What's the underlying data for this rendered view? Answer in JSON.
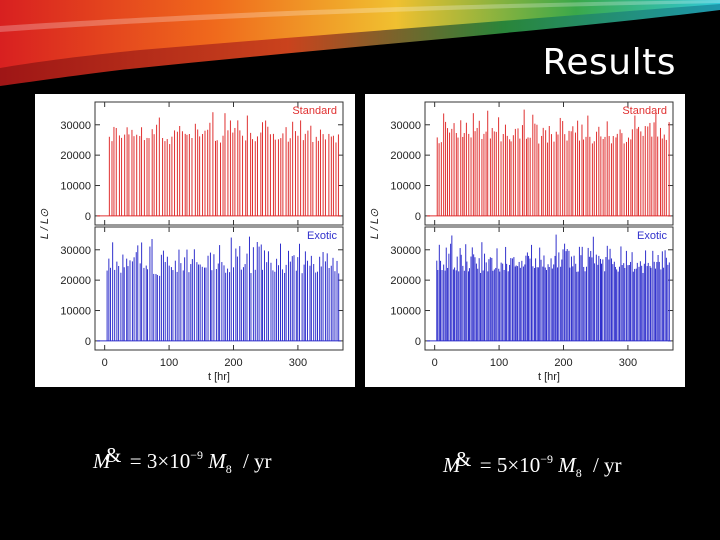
{
  "slide": {
    "title": "Results",
    "formulas": [
      {
        "lhs": "M",
        "dot": "&",
        "eq": "=",
        "coeff": "3",
        "times": "×",
        "base": "10",
        "exp": "−9",
        "mass": "M",
        "mass_sub": "8",
        "unit": "/ yr"
      },
      {
        "lhs": "M",
        "dot": "&",
        "eq": "=",
        "coeff": "5",
        "times": "×",
        "base": "10",
        "exp": "−9",
        "mass": "M",
        "mass_sub": "8",
        "unit": "/ yr"
      }
    ]
  },
  "colors": {
    "standard": "#e03030",
    "exotic": "#3030cc",
    "banner_green": "#3aa84a",
    "banner_cyan": "#30c8d8",
    "banner_red": "#d82020",
    "banner_orange": "#f08020"
  },
  "chart_data": [
    {
      "type": "line",
      "title": "",
      "xlabel": "t [hr]",
      "ylabel": "L / L⊙",
      "xlim": [
        -15,
        370
      ],
      "ylim": [
        -3000,
        37500
      ],
      "xticks": [
        "0",
        "100",
        "200",
        "300"
      ],
      "yticks": [
        "0",
        "10000",
        "20000",
        "30000"
      ],
      "series": [
        {
          "name": "Standard",
          "color": "#e03030",
          "spike_count": 92,
          "peak_range": [
            17000,
            35000
          ],
          "x_range": [
            5,
            365
          ]
        },
        {
          "name": "Exotic",
          "color": "#3030cc",
          "spike_count": 120,
          "peak_range": [
            14000,
            35000
          ],
          "x_range": [
            2,
            365
          ]
        }
      ]
    },
    {
      "type": "line",
      "title": "",
      "xlabel": "t [hr]",
      "ylabel": "L / L⊙",
      "xlim": [
        -15,
        370
      ],
      "ylim": [
        -3000,
        37500
      ],
      "xticks": [
        "0",
        "100",
        "200",
        "300"
      ],
      "yticks": [
        "0",
        "10000",
        "20000",
        "30000"
      ],
      "series": [
        {
          "name": "Standard",
          "color": "#e03030",
          "spike_count": 110,
          "peak_range": [
            17000,
            35000
          ],
          "x_range": [
            2,
            365
          ]
        },
        {
          "name": "Exotic",
          "color": "#3030cc",
          "spike_count": 170,
          "peak_range": [
            15000,
            35000
          ],
          "x_range": [
            2,
            365
          ]
        }
      ]
    }
  ]
}
